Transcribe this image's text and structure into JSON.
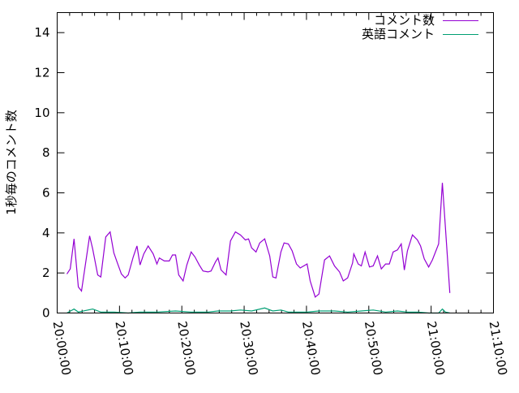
{
  "chart_data": {
    "type": "line",
    "title": "",
    "xlabel": "",
    "ylabel": "1秒毎のコメント数",
    "xlim": [
      "20:00:00",
      "21:10:00"
    ],
    "ylim": [
      0,
      15
    ],
    "xticks": [
      "20:00:00",
      "20:10:00",
      "20:20:00",
      "20:30:00",
      "20:40:00",
      "20:50:00",
      "21:00:00",
      "21:10:00"
    ],
    "yticks": [
      "0",
      "2",
      "4",
      "6",
      "8",
      "10",
      "12",
      "14"
    ],
    "grid": false,
    "legend": "top-right",
    "series": [
      {
        "name": "コメント数",
        "color": "#9400d3",
        "x": [
          "20:01:34",
          "20:02:06",
          "20:02:42",
          "20:03:24",
          "20:03:54",
          "20:05:12",
          "20:05:42",
          "20:06:30",
          "20:07:00",
          "20:07:48",
          "20:08:30",
          "20:09:06",
          "20:09:36",
          "20:10:18",
          "20:10:54",
          "20:11:24",
          "20:12:12",
          "20:12:48",
          "20:13:18",
          "20:13:54",
          "20:14:36",
          "20:15:24",
          "20:16:00",
          "20:16:24",
          "20:17:12",
          "20:18:00",
          "20:18:30",
          "20:19:00",
          "20:19:30",
          "20:20:12",
          "20:20:48",
          "20:21:30",
          "20:22:06",
          "20:22:48",
          "20:23:24",
          "20:24:12",
          "20:24:42",
          "20:25:24",
          "20:25:48",
          "20:26:18",
          "20:27:06",
          "20:27:48",
          "20:28:36",
          "20:29:24",
          "20:30:12",
          "20:30:42",
          "20:31:12",
          "20:31:54",
          "20:32:30",
          "20:33:18",
          "20:34:06",
          "20:34:36",
          "20:35:06",
          "20:35:54",
          "20:36:24",
          "20:37:06",
          "20:37:42",
          "20:38:24",
          "20:39:00",
          "20:40:06",
          "20:40:36",
          "20:41:24",
          "20:42:00",
          "20:42:54",
          "20:43:42",
          "20:44:30",
          "20:45:18",
          "20:45:54",
          "20:46:36",
          "20:47:24",
          "20:47:36",
          "20:48:18",
          "20:48:48",
          "20:49:24",
          "20:50:06",
          "20:50:42",
          "20:51:24",
          "20:52:00",
          "20:52:42",
          "20:53:18",
          "20:53:54",
          "20:54:36",
          "20:55:12",
          "20:55:42",
          "20:56:12",
          "20:57:00",
          "20:57:48",
          "20:58:18",
          "20:58:54",
          "20:59:36",
          "21:00:12",
          "21:01:12",
          "21:01:48",
          "21:02:18",
          "21:03:00"
        ],
        "y": [
          1.95,
          2.2,
          3.7,
          1.3,
          1.1,
          3.85,
          3.2,
          1.9,
          1.8,
          3.8,
          4.05,
          3.0,
          2.55,
          1.95,
          1.75,
          1.9,
          2.8,
          3.35,
          2.4,
          2.95,
          3.35,
          2.95,
          2.45,
          2.75,
          2.6,
          2.6,
          2.9,
          2.9,
          1.9,
          1.6,
          2.4,
          3.05,
          2.8,
          2.4,
          2.1,
          2.05,
          2.1,
          2.55,
          2.75,
          2.15,
          1.9,
          3.6,
          4.05,
          3.9,
          3.65,
          3.7,
          3.25,
          3.05,
          3.5,
          3.7,
          2.85,
          1.8,
          1.75,
          3.05,
          3.5,
          3.45,
          3.1,
          2.45,
          2.25,
          2.45,
          1.6,
          0.8,
          0.95,
          2.65,
          2.85,
          2.35,
          2.05,
          1.6,
          1.75,
          2.5,
          2.95,
          2.45,
          2.35,
          3.05,
          2.3,
          2.35,
          2.85,
          2.2,
          2.45,
          2.45,
          3.05,
          3.15,
          3.45,
          2.15,
          3.1,
          3.9,
          3.65,
          3.35,
          2.7,
          2.3,
          2.65,
          3.45,
          6.5,
          4.25,
          1.0
        ]
      },
      {
        "name": "英語コメント",
        "color": "#009e73",
        "x": [
          "20:01:34",
          "20:02:42",
          "20:03:24",
          "20:05:42",
          "20:07:00",
          "20:09:06",
          "20:11:24",
          "20:13:18",
          "20:16:00",
          "20:19:00",
          "20:21:30",
          "20:24:12",
          "20:25:48",
          "20:27:48",
          "20:29:24",
          "20:31:12",
          "20:33:18",
          "20:34:36",
          "20:35:54",
          "20:37:06",
          "20:40:06",
          "20:42:00",
          "20:44:30",
          "20:46:36",
          "20:48:48",
          "20:50:42",
          "20:52:42",
          "20:54:36",
          "20:56:12",
          "20:57:48",
          "20:59:36",
          "21:01:12",
          "21:01:48",
          "21:02:18",
          "21:03:00"
        ],
        "y": [
          0.0,
          0.2,
          0.05,
          0.2,
          0.05,
          0.05,
          0.0,
          0.05,
          0.05,
          0.1,
          0.05,
          0.05,
          0.1,
          0.1,
          0.15,
          0.1,
          0.25,
          0.1,
          0.15,
          0.05,
          0.05,
          0.1,
          0.1,
          0.05,
          0.1,
          0.15,
          0.05,
          0.1,
          0.05,
          0.05,
          0.0,
          0.0,
          0.2,
          0.05,
          0.0
        ]
      }
    ]
  }
}
